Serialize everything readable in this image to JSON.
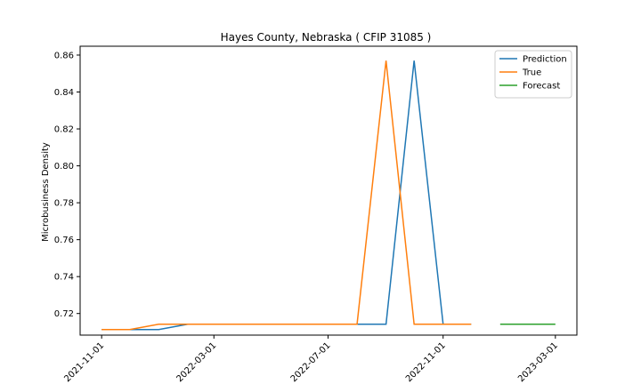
{
  "chart_data": {
    "type": "line",
    "title": "Hayes County, Nebraska ( CFIP 31085 )",
    "xlabel": "",
    "ylabel": "Microbusiness Density",
    "x_ticks": [
      "2021-11-01",
      "2022-03-01",
      "2022-07-01",
      "2022-11-01",
      "2023-03-01"
    ],
    "y_ticks": [
      0.72,
      0.74,
      0.76,
      0.78,
      0.8,
      0.82,
      0.84,
      0.86
    ],
    "xlim": [
      "2021-10-09",
      "2023-03-24"
    ],
    "ylim": [
      0.7083,
      0.8648
    ],
    "legend_position": "top-right",
    "grid": false,
    "series": [
      {
        "name": "Prediction",
        "color": "#1f77b4",
        "x": [
          "2021-11-01",
          "2021-12-01",
          "2022-01-01",
          "2022-02-01",
          "2022-03-01",
          "2022-04-01",
          "2022-05-01",
          "2022-06-01",
          "2022-07-01",
          "2022-08-01",
          "2022-09-01",
          "2022-10-01",
          "2022-11-01",
          "2022-12-01"
        ],
        "values": [
          0.7113,
          0.7113,
          0.7113,
          0.7142,
          0.7142,
          0.7142,
          0.7142,
          0.7142,
          0.7142,
          0.7142,
          0.7142,
          0.857,
          0.7142,
          0.7142
        ]
      },
      {
        "name": "True",
        "color": "#ff7f0e",
        "x": [
          "2021-11-01",
          "2021-12-01",
          "2022-01-01",
          "2022-02-01",
          "2022-03-01",
          "2022-04-01",
          "2022-05-01",
          "2022-06-01",
          "2022-07-01",
          "2022-08-01",
          "2022-09-01",
          "2022-10-01",
          "2022-11-01",
          "2022-12-01"
        ],
        "values": [
          0.7113,
          0.7113,
          0.7142,
          0.7142,
          0.7142,
          0.7142,
          0.7142,
          0.7142,
          0.7142,
          0.7142,
          0.857,
          0.7142,
          0.7142,
          0.7142
        ]
      },
      {
        "name": "Forecast",
        "color": "#2ca02c",
        "x": [
          "2023-01-01",
          "2023-02-01",
          "2023-03-01"
        ],
        "values": [
          0.7142,
          0.7142,
          0.7142
        ]
      }
    ]
  }
}
